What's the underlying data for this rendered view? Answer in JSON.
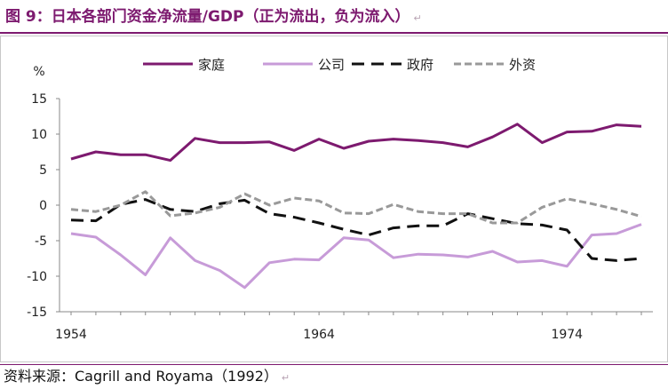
{
  "title": {
    "text": "图 9：日本各部门资金净流量/GDP（正为流出，负为流入）",
    "mark": "↵"
  },
  "source": {
    "text": "资料来源：Cagrill and Royama（1992）",
    "mark": "↵"
  },
  "chart_data": {
    "type": "line",
    "ylabel": "%",
    "ylim": [
      -15,
      15
    ],
    "yticks": [
      15,
      10,
      5,
      0,
      -5,
      -10,
      -15
    ],
    "xticks": [
      1954,
      1964,
      1974
    ],
    "x": [
      1954,
      1955,
      1956,
      1957,
      1958,
      1959,
      1960,
      1961,
      1962,
      1963,
      1964,
      1965,
      1966,
      1967,
      1968,
      1969,
      1970,
      1971,
      1972,
      1973,
      1974,
      1975,
      1976,
      1977
    ],
    "grid": false,
    "legend_position": "top",
    "series": [
      {
        "name": "家庭",
        "color": "#7d1a6f",
        "style": "solid",
        "values": [
          6.5,
          7.5,
          7.1,
          7.1,
          6.3,
          9.4,
          8.8,
          8.8,
          8.9,
          7.7,
          9.3,
          8.0,
          9.0,
          9.3,
          9.1,
          8.8,
          8.2,
          9.6,
          11.4,
          8.8,
          10.3,
          10.4,
          11.3,
          11.1
        ]
      },
      {
        "name": "公司",
        "color": "#c79bd8",
        "style": "solid",
        "values": [
          -4.0,
          -4.5,
          -7.0,
          -9.8,
          -4.6,
          -7.8,
          -9.2,
          -11.6,
          -8.1,
          -7.6,
          -7.7,
          -4.6,
          -4.9,
          -7.4,
          -6.9,
          -7.0,
          -7.3,
          -6.5,
          -8.0,
          -7.8,
          -8.6,
          -4.2,
          -4.0,
          -2.7
        ]
      },
      {
        "name": "政府",
        "color": "#111111",
        "style": "dash",
        "values": [
          -2.1,
          -2.2,
          0.1,
          0.8,
          -0.6,
          -0.9,
          0.2,
          0.7,
          -1.2,
          -1.7,
          -2.5,
          -3.4,
          -4.2,
          -3.2,
          -2.9,
          -2.9,
          -1.2,
          -1.9,
          -2.6,
          -2.8,
          -3.5,
          -7.5,
          -7.8,
          -7.5
        ]
      },
      {
        "name": "外资",
        "color": "#999999",
        "style": "dash",
        "values": [
          -0.6,
          -0.9,
          0.0,
          1.9,
          -1.5,
          -1.1,
          -0.3,
          1.6,
          0.0,
          1.0,
          0.6,
          -1.1,
          -1.2,
          0.1,
          -0.9,
          -1.2,
          -1.2,
          -2.5,
          -2.5,
          -0.3,
          0.9,
          0.2,
          -0.6,
          -1.6
        ]
      }
    ]
  }
}
